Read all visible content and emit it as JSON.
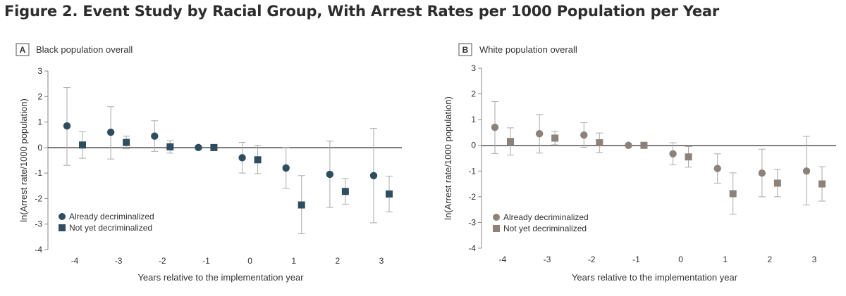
{
  "figure_title": "Figure 2.  Event Study by Racial Group, With Arrest Rates per 1000 Population per Year",
  "colors": {
    "black_panel": "#2e4d5e",
    "white_panel": "#8c8279",
    "zero_line": "#555555",
    "errorbar": "#aaaaaa",
    "axis": "#888888"
  },
  "chart_data": [
    {
      "type": "scatter",
      "panel_letter": "A",
      "title": "Black population overall",
      "xlabel": "Years relative to the implementation year",
      "ylabel": "ln(Arrest rate/1000 population)",
      "xticks": [
        -4,
        -3,
        -2,
        -1,
        0,
        1,
        2,
        3
      ],
      "yticks": [
        3,
        2,
        1,
        0,
        -1,
        -2,
        -3,
        -4
      ],
      "ylim": [
        -4,
        3
      ],
      "legend_position": "bottom-left",
      "series": [
        {
          "name": "Already decriminalized",
          "marker": "circle",
          "x": [
            -4,
            -3,
            -2,
            -1,
            0,
            1,
            2,
            3
          ],
          "y": [
            0.85,
            0.6,
            0.45,
            0.0,
            -0.4,
            -0.8,
            -1.05,
            -1.1
          ],
          "lo": [
            -0.7,
            -0.45,
            -0.15,
            0.0,
            -1.0,
            -1.6,
            -2.35,
            -2.95
          ],
          "hi": [
            2.35,
            1.6,
            1.05,
            0.0,
            0.2,
            0.0,
            0.25,
            0.75
          ]
        },
        {
          "name": "Not yet decriminalized",
          "marker": "square",
          "x": [
            -4,
            -3,
            -2,
            -1,
            0,
            1,
            2,
            3
          ],
          "y": [
            0.1,
            0.2,
            0.03,
            0.0,
            -0.48,
            -2.25,
            -1.72,
            -1.82
          ],
          "lo": [
            -0.42,
            -0.05,
            -0.22,
            0.0,
            -1.02,
            -3.38,
            -2.22,
            -2.52
          ],
          "hi": [
            0.62,
            0.45,
            0.27,
            0.0,
            0.08,
            -1.1,
            -1.22,
            -1.12
          ]
        }
      ]
    },
    {
      "type": "scatter",
      "panel_letter": "B",
      "title": "White population overall",
      "xlabel": "Years relative to the implementation year",
      "ylabel": "ln(Arrest rate/1000 population)",
      "xticks": [
        -4,
        -3,
        -2,
        -1,
        0,
        1,
        2,
        3
      ],
      "yticks": [
        3,
        2,
        1,
        0,
        -1,
        -2,
        -3,
        -4
      ],
      "ylim": [
        -4,
        3
      ],
      "legend_position": "bottom-left",
      "series": [
        {
          "name": "Already decriminalized",
          "marker": "circle",
          "x": [
            -4,
            -3,
            -2,
            -1,
            0,
            1,
            2,
            3
          ],
          "y": [
            0.7,
            0.45,
            0.4,
            0.0,
            -0.33,
            -0.9,
            -1.08,
            -1.0
          ],
          "lo": [
            -0.32,
            -0.3,
            -0.08,
            0.0,
            -0.75,
            -1.47,
            -2.0,
            -2.32
          ],
          "hi": [
            1.7,
            1.2,
            0.88,
            0.0,
            0.1,
            -0.33,
            -0.15,
            0.35
          ]
        },
        {
          "name": "Not yet decriminalized",
          "marker": "square",
          "x": [
            -4,
            -3,
            -2,
            -1,
            0,
            1,
            2,
            3
          ],
          "y": [
            0.15,
            0.28,
            0.1,
            0.0,
            -0.45,
            -1.88,
            -1.47,
            -1.5
          ],
          "lo": [
            -0.38,
            0.02,
            -0.28,
            0.0,
            -0.85,
            -2.68,
            -2.0,
            -2.17
          ],
          "hi": [
            0.68,
            0.55,
            0.48,
            0.0,
            -0.05,
            -1.07,
            -0.93,
            -0.83
          ]
        }
      ]
    }
  ]
}
